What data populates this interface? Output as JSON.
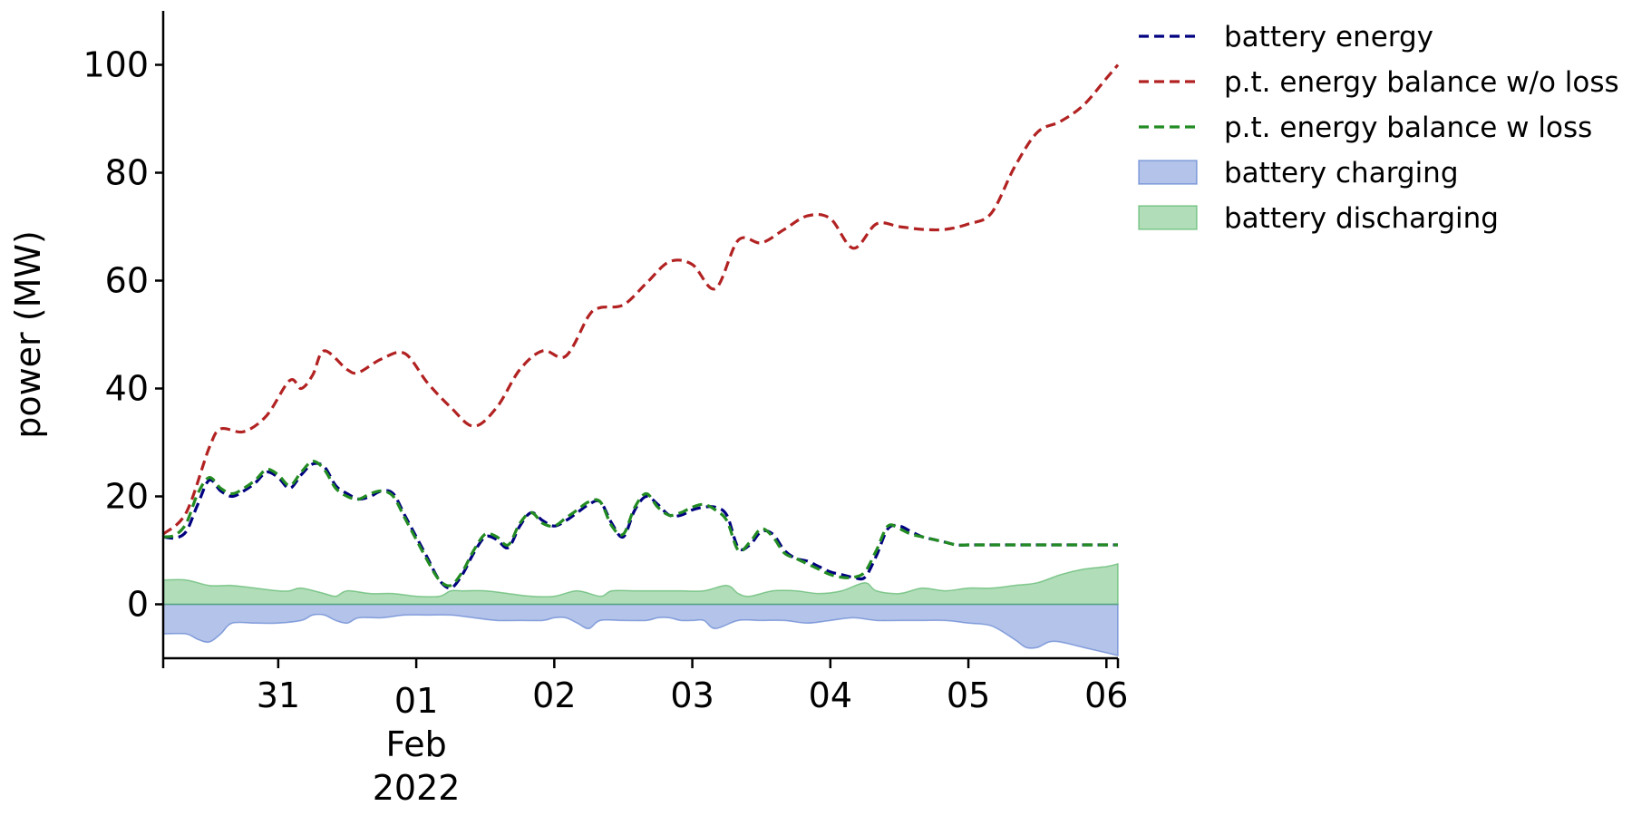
{
  "chart_data": {
    "type": "line",
    "title": "",
    "xlabel": "",
    "ylabel": "power (MW)",
    "ylim": [
      -10,
      110
    ],
    "yticks": [
      0,
      20,
      40,
      60,
      80,
      100
    ],
    "xlim": [
      "2022-01-30 04:00",
      "2022-02-06 02:00"
    ],
    "xticks": [
      {
        "date": "2022-01-31 00:00",
        "label": "31"
      },
      {
        "date": "2022-02-01 00:00",
        "label": "01",
        "sublabel_month": "Feb",
        "sublabel_year": "2022"
      },
      {
        "date": "2022-02-02 00:00",
        "label": "02"
      },
      {
        "date": "2022-02-03 00:00",
        "label": "03"
      },
      {
        "date": "2022-02-04 00:00",
        "label": "04"
      },
      {
        "date": "2022-02-05 00:00",
        "label": "05"
      },
      {
        "date": "2022-02-06 00:00",
        "label": "06"
      }
    ],
    "grid": false,
    "legend": "top-right outside",
    "series": [
      {
        "name": "battery energy",
        "style": "dashed",
        "color": "#000080",
        "x": [
          "2022-01-30 04:00",
          "2022-01-30 06:00",
          "2022-01-30 08:00",
          "2022-01-30 10:00",
          "2022-01-30 12:00",
          "2022-01-30 14:00",
          "2022-01-30 16:00",
          "2022-01-30 18:00",
          "2022-01-30 20:00",
          "2022-01-30 22:00",
          "2022-01-31 00:00",
          "2022-01-31 02:00",
          "2022-01-31 04:00",
          "2022-01-31 06:00",
          "2022-01-31 08:00",
          "2022-01-31 10:00",
          "2022-01-31 12:00",
          "2022-01-31 14:00",
          "2022-01-31 16:00",
          "2022-01-31 18:00",
          "2022-01-31 20:00",
          "2022-01-31 22:00",
          "2022-02-01 00:00",
          "2022-02-01 02:00",
          "2022-02-01 04:00",
          "2022-02-01 06:00",
          "2022-02-01 08:00",
          "2022-02-01 10:00",
          "2022-02-01 12:00",
          "2022-02-01 14:00",
          "2022-02-01 16:00",
          "2022-02-01 18:00",
          "2022-02-01 20:00",
          "2022-02-01 22:00",
          "2022-02-02 00:00",
          "2022-02-02 02:00",
          "2022-02-02 04:00",
          "2022-02-02 06:00",
          "2022-02-02 08:00",
          "2022-02-02 10:00",
          "2022-02-02 12:00",
          "2022-02-02 14:00",
          "2022-02-02 16:00",
          "2022-02-02 18:00",
          "2022-02-02 20:00",
          "2022-02-02 22:00",
          "2022-02-03 00:00",
          "2022-02-03 02:00",
          "2022-02-03 04:00",
          "2022-02-03 06:00",
          "2022-02-03 08:00",
          "2022-02-03 10:00",
          "2022-02-03 12:00",
          "2022-02-03 14:00",
          "2022-02-03 16:00",
          "2022-02-03 18:00",
          "2022-02-03 20:00",
          "2022-02-03 22:00",
          "2022-02-04 00:00",
          "2022-02-04 02:00",
          "2022-02-04 04:00",
          "2022-02-04 06:00",
          "2022-02-04 08:00",
          "2022-02-04 10:00",
          "2022-02-04 12:00",
          "2022-02-04 14:00",
          "2022-02-04 16:00",
          "2022-02-04 18:00",
          "2022-02-04 20:00",
          "2022-02-04 22:00",
          "2022-02-05 00:00",
          "2022-02-05 02:00",
          "2022-02-05 04:00",
          "2022-02-05 06:00",
          "2022-02-05 08:00",
          "2022-02-05 10:00",
          "2022-02-05 12:00",
          "2022-02-05 14:00",
          "2022-02-05 16:00",
          "2022-02-05 18:00",
          "2022-02-05 20:00",
          "2022-02-05 22:00",
          "2022-02-06 00:00",
          "2022-02-06 02:00"
        ],
        "values": [
          12.5,
          12.3,
          13.5,
          18.5,
          23.0,
          21.0,
          20.0,
          21.0,
          22.5,
          24.5,
          23.5,
          21.5,
          24.0,
          26.0,
          25.5,
          22.0,
          20.5,
          19.5,
          20.0,
          21.0,
          20.5,
          16.5,
          12.5,
          8.5,
          4.5,
          3.0,
          5.5,
          9.5,
          12.5,
          12.0,
          10.5,
          14.5,
          17.0,
          15.5,
          14.5,
          15.5,
          17.0,
          18.5,
          19.0,
          15.0,
          12.5,
          17.5,
          20.0,
          18.5,
          16.5,
          16.5,
          17.5,
          18.0,
          18.0,
          16.5,
          10.5,
          11.0,
          13.5,
          13.0,
          10.0,
          8.5,
          8.0,
          7.0,
          6.0,
          5.5,
          5.0,
          5.0,
          9.0,
          14.0,
          14.5,
          13.5,
          12.5,
          12.0,
          11.5,
          11.0,
          11.0,
          11.0,
          11.0,
          11.0,
          11.0,
          11.0,
          11.0,
          11.0,
          11.0,
          11.0,
          11.0,
          11.0,
          11.0,
          11.0
        ]
      },
      {
        "name": "p.t. energy balance w/o loss",
        "style": "dashed",
        "color": "#b22222",
        "x": [
          "2022-01-30 04:00",
          "2022-01-30 08:00",
          "2022-01-30 12:00",
          "2022-01-30 14:00",
          "2022-01-30 18:00",
          "2022-01-30 22:00",
          "2022-01-31 02:00",
          "2022-01-31 04:00",
          "2022-01-31 06:00",
          "2022-01-31 08:00",
          "2022-01-31 12:00",
          "2022-01-31 14:00",
          "2022-01-31 18:00",
          "2022-01-31 22:00",
          "2022-02-01 02:00",
          "2022-02-01 06:00",
          "2022-02-01 10:00",
          "2022-02-01 14:00",
          "2022-02-01 18:00",
          "2022-02-01 22:00",
          "2022-02-02 02:00",
          "2022-02-02 06:00",
          "2022-02-02 08:00",
          "2022-02-02 12:00",
          "2022-02-02 16:00",
          "2022-02-02 20:00",
          "2022-02-03 00:00",
          "2022-02-03 04:00",
          "2022-02-03 08:00",
          "2022-02-03 12:00",
          "2022-02-03 16:00",
          "2022-02-03 20:00",
          "2022-02-04 00:00",
          "2022-02-04 04:00",
          "2022-02-04 08:00",
          "2022-02-04 12:00",
          "2022-02-04 16:00",
          "2022-02-04 20:00",
          "2022-02-05 00:00",
          "2022-02-05 04:00",
          "2022-02-05 08:00",
          "2022-02-05 12:00",
          "2022-02-05 16:00",
          "2022-02-05 20:00",
          "2022-02-06 00:00",
          "2022-02-06 02:00"
        ],
        "values": [
          13.0,
          17.0,
          29.0,
          32.5,
          32.0,
          35.0,
          41.5,
          40.0,
          42.5,
          47.0,
          43.5,
          43.0,
          45.5,
          46.5,
          41.0,
          36.5,
          33.0,
          36.5,
          43.5,
          47.0,
          46.0,
          53.5,
          55.0,
          55.5,
          59.5,
          63.5,
          63.0,
          58.5,
          67.5,
          67.0,
          69.5,
          72.0,
          71.5,
          66.0,
          70.5,
          70.0,
          69.5,
          69.5,
          70.5,
          72.5,
          81.0,
          87.5,
          89.5,
          92.5,
          97.5,
          100.0
        ]
      },
      {
        "name": "p.t. energy balance w loss",
        "style": "dashed",
        "color": "#228b22",
        "x": [
          "2022-01-30 04:00",
          "2022-01-30 06:00",
          "2022-01-30 08:00",
          "2022-01-30 10:00",
          "2022-01-30 12:00",
          "2022-01-30 14:00",
          "2022-01-30 16:00",
          "2022-01-30 18:00",
          "2022-01-30 20:00",
          "2022-01-30 22:00",
          "2022-01-31 00:00",
          "2022-01-31 02:00",
          "2022-01-31 04:00",
          "2022-01-31 06:00",
          "2022-01-31 08:00",
          "2022-01-31 10:00",
          "2022-01-31 12:00",
          "2022-01-31 14:00",
          "2022-01-31 16:00",
          "2022-01-31 18:00",
          "2022-01-31 20:00",
          "2022-01-31 22:00",
          "2022-02-01 00:00",
          "2022-02-01 02:00",
          "2022-02-01 04:00",
          "2022-02-01 06:00",
          "2022-02-01 08:00",
          "2022-02-01 10:00",
          "2022-02-01 12:00",
          "2022-02-01 14:00",
          "2022-02-01 16:00",
          "2022-02-01 18:00",
          "2022-02-01 20:00",
          "2022-02-01 22:00",
          "2022-02-02 00:00",
          "2022-02-02 02:00",
          "2022-02-02 04:00",
          "2022-02-02 06:00",
          "2022-02-02 08:00",
          "2022-02-02 10:00",
          "2022-02-02 12:00",
          "2022-02-02 14:00",
          "2022-02-02 16:00",
          "2022-02-02 18:00",
          "2022-02-02 20:00",
          "2022-02-02 22:00",
          "2022-02-03 00:00",
          "2022-02-03 02:00",
          "2022-02-03 04:00",
          "2022-02-03 06:00",
          "2022-02-03 08:00",
          "2022-02-03 10:00",
          "2022-02-03 12:00",
          "2022-02-03 14:00",
          "2022-02-03 16:00",
          "2022-02-03 18:00",
          "2022-02-03 20:00",
          "2022-02-03 22:00",
          "2022-02-04 00:00",
          "2022-02-04 02:00",
          "2022-02-04 04:00",
          "2022-02-04 06:00",
          "2022-02-04 08:00",
          "2022-02-04 10:00",
          "2022-02-04 12:00",
          "2022-02-04 14:00",
          "2022-02-04 16:00",
          "2022-02-04 18:00",
          "2022-02-04 20:00",
          "2022-02-04 22:00",
          "2022-02-05 00:00",
          "2022-02-05 02:00",
          "2022-02-05 04:00",
          "2022-02-05 06:00",
          "2022-02-05 08:00",
          "2022-02-05 10:00",
          "2022-02-05 12:00",
          "2022-02-05 14:00",
          "2022-02-05 16:00",
          "2022-02-05 18:00",
          "2022-02-05 20:00",
          "2022-02-05 22:00",
          "2022-02-06 00:00",
          "2022-02-06 02:00"
        ],
        "values": [
          12.5,
          12.8,
          15.0,
          20.5,
          23.5,
          21.5,
          20.5,
          21.5,
          23.0,
          25.0,
          24.0,
          22.0,
          24.5,
          26.5,
          25.0,
          21.5,
          20.0,
          19.5,
          20.5,
          21.0,
          20.0,
          16.0,
          12.0,
          8.0,
          4.5,
          3.5,
          6.0,
          10.0,
          13.0,
          12.5,
          11.0,
          15.0,
          17.0,
          15.0,
          14.5,
          16.0,
          17.5,
          19.0,
          19.0,
          14.5,
          13.0,
          18.0,
          20.5,
          18.0,
          16.5,
          17.0,
          18.0,
          18.5,
          17.5,
          15.5,
          10.0,
          11.5,
          14.0,
          12.5,
          9.5,
          8.5,
          7.5,
          6.5,
          5.5,
          5.0,
          5.0,
          6.0,
          10.0,
          14.5,
          14.0,
          13.0,
          12.5,
          12.0,
          11.5,
          11.0,
          11.0,
          11.0,
          11.0,
          11.0,
          11.0,
          11.0,
          11.0,
          11.0,
          11.0,
          11.0,
          11.0,
          11.0,
          11.0,
          11.0
        ]
      }
    ],
    "areas": [
      {
        "name": "battery charging",
        "color": "#4169c8",
        "opacity": 0.4,
        "x": [
          "2022-01-30 04:00",
          "2022-01-30 08:00",
          "2022-01-30 10:00",
          "2022-01-30 12:00",
          "2022-01-30 14:00",
          "2022-01-30 16:00",
          "2022-01-30 20:00",
          "2022-01-31 00:00",
          "2022-01-31 04:00",
          "2022-01-31 06:00",
          "2022-01-31 08:00",
          "2022-01-31 10:00",
          "2022-01-31 12:00",
          "2022-01-31 14:00",
          "2022-01-31 18:00",
          "2022-01-31 22:00",
          "2022-02-01 02:00",
          "2022-02-01 06:00",
          "2022-02-01 10:00",
          "2022-02-01 14:00",
          "2022-02-01 18:00",
          "2022-02-01 22:00",
          "2022-02-02 00:00",
          "2022-02-02 02:00",
          "2022-02-02 04:00",
          "2022-02-02 06:00",
          "2022-02-02 08:00",
          "2022-02-02 12:00",
          "2022-02-02 16:00",
          "2022-02-02 18:00",
          "2022-02-02 20:00",
          "2022-02-02 22:00",
          "2022-02-03 00:00",
          "2022-02-03 02:00",
          "2022-02-03 04:00",
          "2022-02-03 08:00",
          "2022-02-03 12:00",
          "2022-02-03 16:00",
          "2022-02-03 20:00",
          "2022-02-04 00:00",
          "2022-02-04 04:00",
          "2022-02-04 08:00",
          "2022-02-04 12:00",
          "2022-02-04 16:00",
          "2022-02-04 20:00",
          "2022-02-05 00:00",
          "2022-02-05 04:00",
          "2022-02-05 08:00",
          "2022-02-05 10:00",
          "2022-02-05 12:00",
          "2022-02-05 14:00",
          "2022-02-05 16:00",
          "2022-02-05 20:00",
          "2022-02-06 00:00",
          "2022-02-06 02:00"
        ],
        "values": [
          -5.5,
          -5.5,
          -6.5,
          -7.0,
          -5.5,
          -3.5,
          -3.5,
          -3.5,
          -3.0,
          -2.0,
          -2.0,
          -3.0,
          -3.5,
          -2.5,
          -2.5,
          -2.0,
          -2.0,
          -2.0,
          -2.5,
          -3.0,
          -3.0,
          -3.0,
          -2.5,
          -2.5,
          -3.5,
          -4.5,
          -3.0,
          -3.0,
          -3.0,
          -2.5,
          -2.5,
          -3.0,
          -3.0,
          -3.0,
          -4.5,
          -3.0,
          -3.0,
          -3.0,
          -3.5,
          -3.0,
          -2.5,
          -3.0,
          -3.0,
          -3.0,
          -3.0,
          -3.5,
          -4.0,
          -6.5,
          -8.0,
          -8.0,
          -7.0,
          -7.0,
          -8.0,
          -9.0,
          -9.5
        ]
      },
      {
        "name": "battery discharging",
        "color": "#3caa50",
        "opacity": 0.4,
        "x": [
          "2022-01-30 04:00",
          "2022-01-30 08:00",
          "2022-01-30 12:00",
          "2022-01-30 16:00",
          "2022-01-30 20:00",
          "2022-01-31 00:00",
          "2022-01-31 02:00",
          "2022-01-31 04:00",
          "2022-01-31 08:00",
          "2022-01-31 10:00",
          "2022-01-31 12:00",
          "2022-01-31 16:00",
          "2022-01-31 20:00",
          "2022-02-01 00:00",
          "2022-02-01 04:00",
          "2022-02-01 06:00",
          "2022-02-01 08:00",
          "2022-02-01 12:00",
          "2022-02-01 16:00",
          "2022-02-01 20:00",
          "2022-02-02 00:00",
          "2022-02-02 04:00",
          "2022-02-02 08:00",
          "2022-02-02 10:00",
          "2022-02-02 14:00",
          "2022-02-02 18:00",
          "2022-02-02 22:00",
          "2022-02-03 02:00",
          "2022-02-03 06:00",
          "2022-02-03 08:00",
          "2022-02-03 10:00",
          "2022-02-03 14:00",
          "2022-02-03 18:00",
          "2022-02-03 22:00",
          "2022-02-04 02:00",
          "2022-02-04 06:00",
          "2022-02-04 08:00",
          "2022-02-04 12:00",
          "2022-02-04 16:00",
          "2022-02-04 20:00",
          "2022-02-05 00:00",
          "2022-02-05 04:00",
          "2022-02-05 08:00",
          "2022-02-05 12:00",
          "2022-02-05 16:00",
          "2022-02-05 20:00",
          "2022-02-06 00:00",
          "2022-02-06 02:00"
        ],
        "values": [
          4.5,
          4.5,
          3.5,
          3.5,
          3.0,
          2.5,
          2.5,
          3.0,
          2.0,
          1.5,
          2.5,
          2.0,
          2.0,
          1.5,
          1.5,
          2.5,
          2.5,
          2.5,
          2.0,
          1.5,
          1.5,
          2.5,
          1.5,
          2.5,
          2.5,
          2.5,
          2.5,
          2.5,
          3.5,
          2.0,
          1.5,
          2.5,
          2.5,
          2.0,
          2.5,
          4.0,
          2.5,
          2.0,
          3.0,
          2.5,
          3.0,
          3.0,
          3.5,
          4.0,
          5.5,
          6.5,
          7.0,
          7.5
        ]
      }
    ]
  }
}
